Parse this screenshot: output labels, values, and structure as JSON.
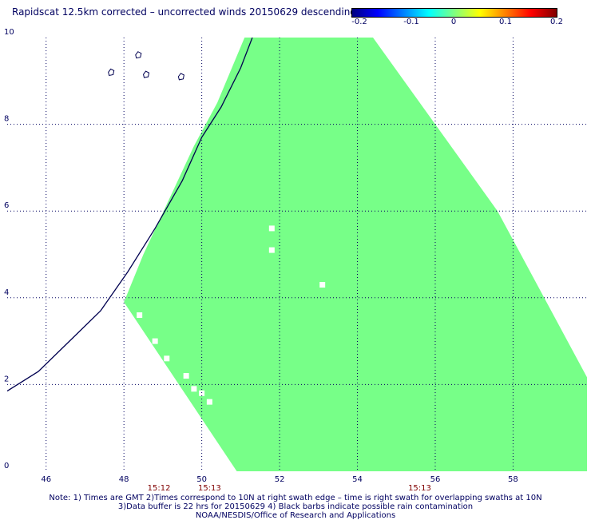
{
  "title": "Rapidscat 12.5km corrected – uncorrected winds 20150629 descending",
  "colorbar": {
    "labels": [
      "-0.2",
      "-0.1",
      "0",
      "0.1",
      "0.2"
    ],
    "colors": [
      "#000080",
      "#0000ff",
      "#00ffff",
      "#80ff80",
      "#ffff00",
      "#ff8000",
      "#ff0000",
      "#800000"
    ]
  },
  "chart_data": {
    "type": "heatmap",
    "xlim": [
      45,
      59.9
    ],
    "ylim": [
      0,
      10
    ],
    "x_ticks": [
      "46",
      "48",
      "50",
      "52",
      "54",
      "56",
      "58"
    ],
    "y_ticks": [
      "0",
      "2",
      "4",
      "6",
      "8",
      "10"
    ],
    "grid": true,
    "swath_color": "#77ff88",
    "swath_value": 0,
    "time_labels": [
      {
        "x": 48.9,
        "text": "15:12"
      },
      {
        "x": 50.2,
        "text": "15:13"
      },
      {
        "x": 55.6,
        "text": "15:13"
      }
    ],
    "swath_polygon": [
      [
        51.1,
        10
      ],
      [
        54.4,
        10
      ],
      [
        57.6,
        6
      ],
      [
        60,
        2
      ],
      [
        60,
        0
      ],
      [
        50.9,
        0
      ],
      [
        48.0,
        3.9
      ],
      [
        48.5,
        5
      ],
      [
        49.8,
        7.5
      ],
      [
        50.4,
        8.5
      ],
      [
        51.1,
        10
      ]
    ],
    "missing_cells": [
      [
        51.8,
        5.6
      ],
      [
        51.8,
        5.1
      ],
      [
        53.1,
        4.3
      ],
      [
        48.4,
        3.6
      ],
      [
        48.8,
        3.0
      ],
      [
        49.1,
        2.6
      ],
      [
        49.6,
        2.2
      ],
      [
        49.8,
        1.9
      ],
      [
        50.0,
        1.8
      ],
      [
        50.2,
        1.6
      ]
    ],
    "coastline": [
      [
        45.0,
        1.85
      ],
      [
        45.8,
        2.3
      ],
      [
        46.6,
        3.0
      ],
      [
        47.4,
        3.7
      ],
      [
        48.1,
        4.6
      ],
      [
        48.8,
        5.6
      ],
      [
        49.5,
        6.7
      ],
      [
        50.0,
        7.7
      ],
      [
        50.5,
        8.4
      ],
      [
        51.0,
        9.3
      ],
      [
        51.3,
        10.0
      ]
    ]
  },
  "notes": [
    "Note: 1) Times are GMT 2)Times correspond to 10N at right swath edge – time is right swath for overlapping swaths at 10N",
    "3)Data buffer is 22 hrs for 20150629 4) Black barbs indicate possible rain contamination",
    "NOAA/NESDIS/Office of Research and Applications"
  ]
}
